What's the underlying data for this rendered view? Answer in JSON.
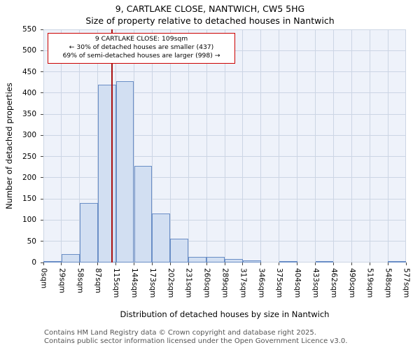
{
  "annotation": {
    "line1": "9 CARTLAKE CLOSE: 109sqm",
    "line2": "← 30% of detached houses are smaller (437)",
    "line3": "69% of semi-detached houses are larger (998) →"
  },
  "footer": {
    "line1": "Contains HM Land Registry data © Crown copyright and database right 2025.",
    "line2": "Contains public sector information licensed under the Open Government Licence v3.0."
  },
  "chart_data": {
    "type": "bar",
    "title": "9, CARTLAKE CLOSE, NANTWICH, CW5 5HG",
    "subtitle": "Size of property relative to detached houses in Nantwich",
    "xlabel": "Distribution of detached houses by size in Nantwich",
    "ylabel": "Number of detached properties",
    "ylim": [
      0,
      550
    ],
    "ytick_step": 50,
    "grid": true,
    "legend": "none",
    "bin_edges_sqm": [
      0,
      29,
      58,
      87,
      115,
      144,
      173,
      202,
      231,
      260,
      289,
      317,
      346,
      375,
      404,
      433,
      462,
      490,
      519,
      548,
      577
    ],
    "tick_labels": [
      "0sqm",
      "29sqm",
      "58sqm",
      "87sqm",
      "115sqm",
      "144sqm",
      "173sqm",
      "202sqm",
      "231sqm",
      "260sqm",
      "289sqm",
      "317sqm",
      "346sqm",
      "375sqm",
      "404sqm",
      "433sqm",
      "462sqm",
      "490sqm",
      "519sqm",
      "548sqm",
      "577sqm"
    ],
    "values": [
      2,
      20,
      140,
      420,
      427,
      228,
      116,
      57,
      14,
      14,
      8,
      5,
      0,
      2,
      0,
      2,
      0,
      0,
      0,
      2
    ],
    "marker_sqm": 109,
    "colors": {
      "bar_fill": "#d2dff2",
      "bar_edge": "#6a8ec6",
      "marker_line": "#aa1111",
      "annotation_border": "#cc0000",
      "grid_line": "#ccd5e4",
      "plot_bg": "#eef2fa"
    }
  }
}
